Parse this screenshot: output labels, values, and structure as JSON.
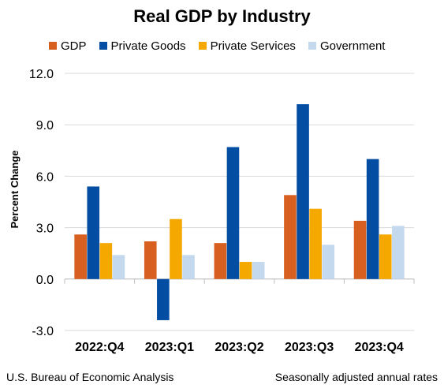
{
  "chart_data": {
    "type": "bar",
    "title": "Real GDP by Industry",
    "xlabel": "",
    "ylabel": "Percent Change",
    "categories": [
      "2022:Q4",
      "2023:Q1",
      "2023:Q2",
      "2023:Q3",
      "2023:Q4"
    ],
    "series": [
      {
        "name": "GDP",
        "color": "#D75F1F",
        "values": [
          2.6,
          2.2,
          2.1,
          4.9,
          3.4
        ]
      },
      {
        "name": "Private Goods",
        "color": "#034EA2",
        "values": [
          5.4,
          -2.4,
          7.7,
          10.2,
          7.0
        ]
      },
      {
        "name": "Private Services",
        "color": "#F5A800",
        "values": [
          2.1,
          3.5,
          1.0,
          4.1,
          2.6
        ]
      },
      {
        "name": "Government",
        "color": "#C4D8EE",
        "values": [
          1.4,
          1.4,
          1.0,
          2.0,
          3.1
        ]
      }
    ],
    "ylim": [
      -3.0,
      12.0
    ],
    "yticks": [
      "-3.0",
      "0.0",
      "3.0",
      "6.0",
      "9.0",
      "12.0"
    ],
    "grid": true,
    "legend_position": "top"
  },
  "footer": {
    "source": "U.S. Bureau of Economic Analysis",
    "note": "Seasonally adjusted annual rates"
  }
}
